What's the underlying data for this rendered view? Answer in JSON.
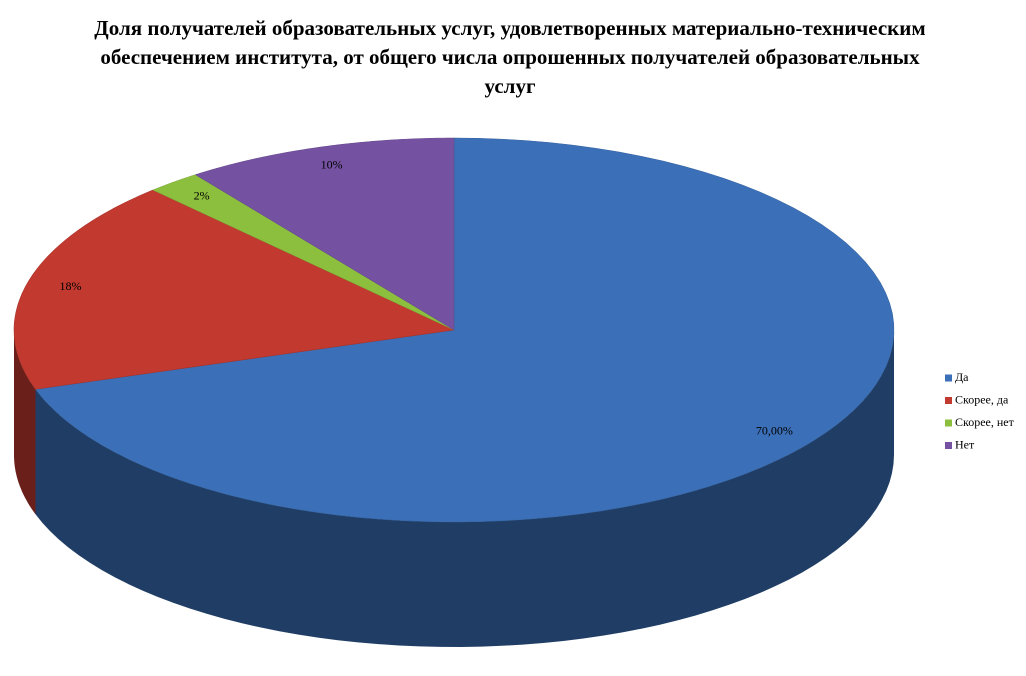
{
  "chart_data": {
    "type": "pie",
    "title": "Доля получателей образовательных услуг, удовлетворенных материально-техническим обеспечением института, от общего числа опрошенных получателей образовательных услуг",
    "categories": [
      "Да",
      "Скорее, да",
      "Скорее, нет",
      "Нет"
    ],
    "values": [
      70,
      18,
      2,
      10
    ],
    "value_labels": [
      "70,00%",
      "18%",
      "2%",
      "10%"
    ],
    "colors": [
      "#3b70b8",
      "#c1392f",
      "#8dbf3f",
      "#7452a1"
    ],
    "legend": "right"
  }
}
